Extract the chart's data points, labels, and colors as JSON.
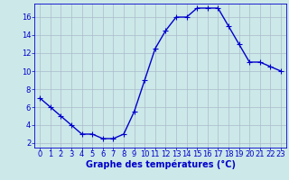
{
  "hours": [
    0,
    1,
    2,
    3,
    4,
    5,
    6,
    7,
    8,
    9,
    10,
    11,
    12,
    13,
    14,
    15,
    16,
    17,
    18,
    19,
    20,
    21,
    22,
    23
  ],
  "temps": [
    7,
    6,
    5,
    4,
    3,
    3,
    2.5,
    2.5,
    3,
    5.5,
    9,
    12.5,
    14.5,
    16,
    16,
    17,
    17,
    17,
    15,
    13,
    11,
    11,
    10.5,
    10
  ],
  "line_color": "#0000cc",
  "marker": "+",
  "marker_size": 4,
  "bg_color": "#cce8e8",
  "grid_color": "#aabbcc",
  "xlabel": "Graphe des températures (°C)",
  "xlabel_color": "#0000cc",
  "xlabel_fontsize": 7,
  "tick_color": "#0000cc",
  "tick_fontsize": 6,
  "xlim": [
    -0.5,
    23.5
  ],
  "ylim": [
    1.5,
    17.5
  ],
  "yticks": [
    2,
    4,
    6,
    8,
    10,
    12,
    14,
    16
  ],
  "xticks": [
    0,
    1,
    2,
    3,
    4,
    5,
    6,
    7,
    8,
    9,
    10,
    11,
    12,
    13,
    14,
    15,
    16,
    17,
    18,
    19,
    20,
    21,
    22,
    23
  ]
}
